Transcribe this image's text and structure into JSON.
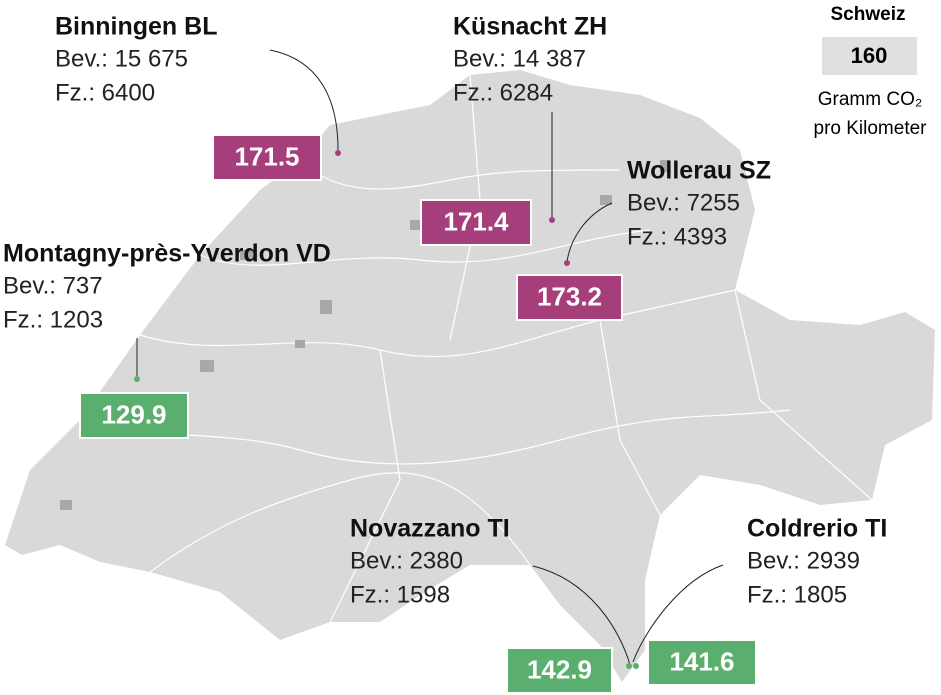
{
  "legend": {
    "title": "Schweiz",
    "value": "160",
    "unit_lines": [
      "Gramm CO₂",
      "pro Kilometer"
    ],
    "color": "#e0e0e0"
  },
  "places": [
    {
      "name": "Binningen BL",
      "population": "Bev.: 15 675",
      "vehicles": "Fz.: 6400",
      "value": "171.5",
      "color": "#a63e7b"
    },
    {
      "name": "Küsnacht ZH",
      "population": "Bev.: 14 387",
      "vehicles": "Fz.: 6284",
      "value": "171.4",
      "color": "#a63e7b"
    },
    {
      "name": "Wollerau SZ",
      "population": "Bev.: 7255",
      "vehicles": "Fz.: 4393",
      "value": "173.2",
      "color": "#a63e7b"
    },
    {
      "name": "Montagny-près-Yverdon VD",
      "population": "Bev.: 737",
      "vehicles": "Fz.: 1203",
      "value": "129.9",
      "color": "#5aaf6e"
    },
    {
      "name": "Novazzano TI",
      "population": "Bev.: 2380",
      "vehicles": "Fz.: 1598",
      "value": "142.9",
      "color": "#5aaf6e"
    },
    {
      "name": "Coldrerio TI",
      "population": "Bev.: 2939",
      "vehicles": "Fz.: 1805",
      "value": "141.6",
      "color": "#5aaf6e"
    }
  ]
}
